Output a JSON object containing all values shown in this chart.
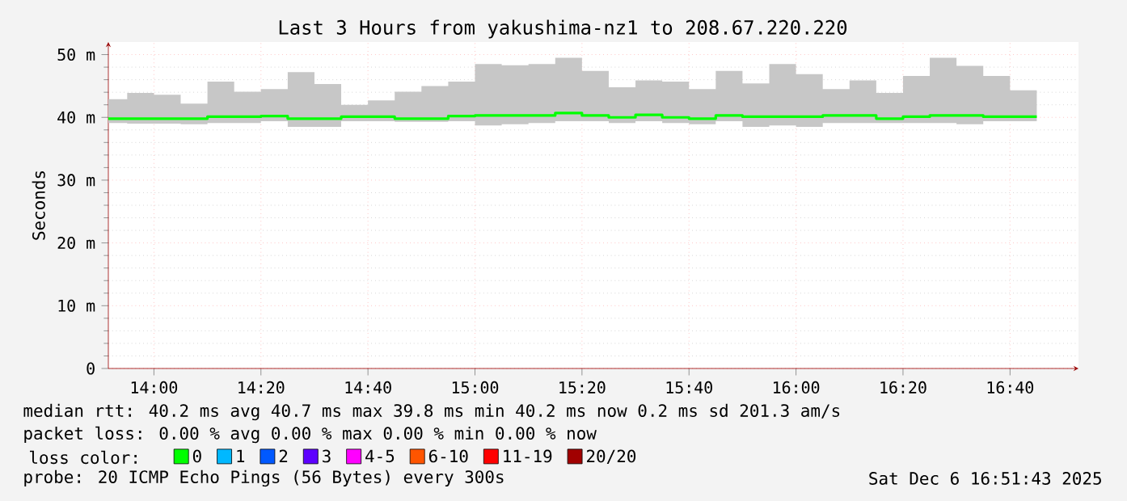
{
  "chart_data": {
    "type": "step",
    "title": "Last 3 Hours from yakushima-nz1 to 208.67.220.220",
    "ylabel": "Seconds",
    "legend_title": "loss color:",
    "x": [
      13.858,
      13.9167,
      14.0,
      14.0833,
      14.1667,
      14.25,
      14.3333,
      14.4167,
      14.5,
      14.5833,
      14.6667,
      14.75,
      14.8333,
      14.9167,
      15.0,
      15.0833,
      15.1667,
      15.25,
      15.3333,
      15.4167,
      15.5,
      15.5833,
      15.6667,
      15.75,
      15.8333,
      15.9167,
      16.0,
      16.0833,
      16.1667,
      16.25,
      16.3333,
      16.4167,
      16.5,
      16.5833,
      16.6667,
      16.75
    ],
    "series": [
      {
        "name": "0",
        "color": "#00ff00",
        "values": [
          39.8,
          39.8,
          39.8,
          39.8,
          40.1,
          40.1,
          40.2,
          39.8,
          39.8,
          40.1,
          40.1,
          39.8,
          39.8,
          40.2,
          40.3,
          40.3,
          40.3,
          40.7,
          40.3,
          40.0,
          40.4,
          40.0,
          39.8,
          40.3,
          40.1,
          40.1,
          40.1,
          40.3,
          40.3,
          39.8,
          40.1,
          40.3,
          40.3,
          40.1,
          40.1,
          40.1
        ],
        "upper": [
          42.9,
          43.9,
          43.6,
          42.2,
          45.7,
          44.1,
          44.5,
          47.2,
          45.3,
          42.0,
          42.7,
          44.1,
          45.0,
          45.7,
          48.5,
          48.3,
          48.5,
          49.5,
          47.4,
          44.8,
          45.9,
          45.7,
          44.5,
          47.4,
          45.4,
          48.5,
          46.9,
          44.5,
          45.9,
          43.9,
          46.6,
          49.5,
          48.2,
          46.6,
          44.3,
          44.3
        ],
        "lower": [
          39.1,
          39.0,
          39.0,
          38.9,
          39.1,
          39.1,
          39.4,
          38.5,
          38.5,
          39.4,
          39.4,
          39.3,
          39.3,
          39.4,
          38.7,
          38.9,
          39.1,
          39.4,
          39.4,
          39.1,
          39.4,
          39.1,
          38.9,
          39.4,
          38.5,
          38.7,
          38.5,
          39.1,
          39.1,
          39.1,
          39.1,
          39.1,
          38.9,
          39.4,
          39.4,
          39.4
        ]
      },
      {
        "name": "1",
        "color": "#00b8ff",
        "values": [
          null,
          null,
          null,
          null,
          null,
          null,
          null,
          null,
          null,
          null,
          null,
          null,
          null,
          null,
          null,
          null,
          null,
          null,
          null,
          null,
          null,
          null,
          null,
          null,
          null,
          null,
          null,
          null,
          null,
          null,
          null,
          null,
          null,
          null,
          null,
          null
        ]
      },
      {
        "name": "2",
        "color": "#0059ff",
        "values": [
          null,
          null,
          null,
          null,
          null,
          null,
          null,
          null,
          null,
          null,
          null,
          null,
          null,
          null,
          null,
          null,
          null,
          null,
          null,
          null,
          null,
          null,
          null,
          null,
          null,
          null,
          null,
          null,
          null,
          null,
          null,
          null,
          null,
          null,
          null,
          null
        ]
      },
      {
        "name": "3",
        "color": "#5e00ff",
        "values": [
          null,
          null,
          null,
          null,
          null,
          null,
          null,
          null,
          null,
          null,
          null,
          null,
          null,
          null,
          null,
          null,
          null,
          null,
          null,
          null,
          null,
          null,
          null,
          null,
          null,
          null,
          null,
          null,
          null,
          null,
          null,
          null,
          null,
          null,
          null,
          null
        ]
      },
      {
        "name": "4-5",
        "color": "#ff00ff",
        "values": [
          null,
          null,
          null,
          null,
          null,
          null,
          null,
          null,
          null,
          null,
          null,
          null,
          null,
          null,
          null,
          null,
          null,
          null,
          null,
          null,
          null,
          null,
          null,
          null,
          null,
          null,
          null,
          null,
          null,
          null,
          null,
          null,
          null,
          null,
          null,
          null
        ]
      },
      {
        "name": "6-10",
        "color": "#ff5500",
        "values": [
          null,
          null,
          null,
          null,
          null,
          null,
          null,
          null,
          null,
          null,
          null,
          null,
          null,
          null,
          null,
          null,
          null,
          null,
          null,
          null,
          null,
          null,
          null,
          null,
          null,
          null,
          null,
          null,
          null,
          null,
          null,
          null,
          null,
          null,
          null,
          null
        ]
      },
      {
        "name": "11-19",
        "color": "#ff0000",
        "values": [
          null,
          null,
          null,
          null,
          null,
          null,
          null,
          null,
          null,
          null,
          null,
          null,
          null,
          null,
          null,
          null,
          null,
          null,
          null,
          null,
          null,
          null,
          null,
          null,
          null,
          null,
          null,
          null,
          null,
          null,
          null,
          null,
          null,
          null,
          null,
          null
        ]
      },
      {
        "name": "20/20",
        "color": "#a10000",
        "values": [
          null,
          null,
          null,
          null,
          null,
          null,
          null,
          null,
          null,
          null,
          null,
          null,
          null,
          null,
          null,
          null,
          null,
          null,
          null,
          null,
          null,
          null,
          null,
          null,
          null,
          null,
          null,
          null,
          null,
          null,
          null,
          null,
          null,
          null,
          null,
          null
        ]
      }
    ],
    "xlim": [
      13.858,
      16.88
    ],
    "xticks": [
      {
        "value": 14,
        "label": "14:00"
      },
      {
        "value": 14.3333,
        "label": "14:20"
      },
      {
        "value": 14.6667,
        "label": "14:40"
      },
      {
        "value": 15,
        "label": "15:00"
      },
      {
        "value": 15.3333,
        "label": "15:20"
      },
      {
        "value": 15.6667,
        "label": "15:40"
      },
      {
        "value": 16,
        "label": "16:00"
      },
      {
        "value": 16.3333,
        "label": "16:20"
      },
      {
        "value": 16.6667,
        "label": "16:40"
      }
    ],
    "ylim": [
      0,
      52
    ],
    "yticks": [
      0,
      {
        "value": 10,
        "label": "10 m"
      },
      {
        "value": 20,
        "label": "20 m"
      },
      {
        "value": 30,
        "label": "30 m"
      },
      {
        "value": 40,
        "label": "40 m"
      },
      {
        "value": 50,
        "label": "50 m"
      }
    ],
    "grid": true,
    "legend": "bottom",
    "annotations": [
      "median rtt: 40.2 ms avg 40.7 ms max 39.8 ms min 40.2 ms now 0.2 ms sd 201.3 am/s",
      "packet loss: 0.00 % avg 0.00 % max 0.00 % min 0.00 % now",
      "probe: 20 ICMP Echo Pings (56 Bytes) every 300s",
      "Sat Dec 6 16:51:43 2025"
    ]
  }
}
